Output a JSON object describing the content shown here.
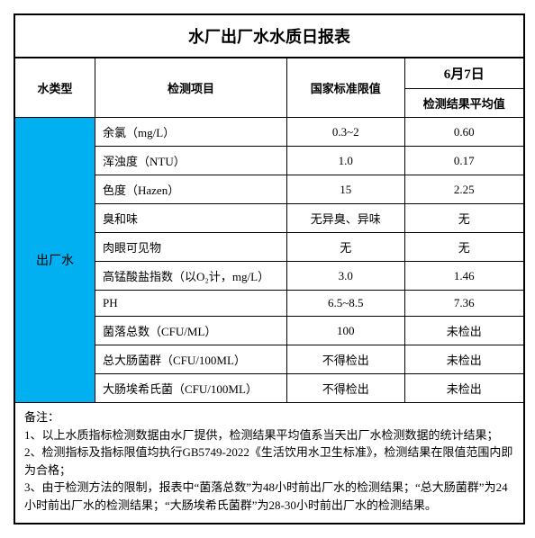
{
  "title": "水厂出厂水水质日报表",
  "headers": {
    "water_type": "水类型",
    "test_item": "检测项目",
    "national_limit": "国家标准限值",
    "date": "6月7日",
    "avg_result": "检测结果平均值"
  },
  "category": "出厂水",
  "rows": [
    {
      "item": "余氯（mg/L）",
      "limit": "0.3~2",
      "result": "0.60"
    },
    {
      "item": "浑浊度（NTU）",
      "limit": "1.0",
      "result": "0.17"
    },
    {
      "item": "色度（Hazen）",
      "limit": "15",
      "result": "2.25"
    },
    {
      "item": "臭和味",
      "limit": "无异臭、异味",
      "result": "无"
    },
    {
      "item": "肉眼可见物",
      "limit": "无",
      "result": "无"
    },
    {
      "item": "高锰酸盐指数（以O₂计，mg/L）",
      "limit": "3.0",
      "result": "1.46"
    },
    {
      "item": "PH",
      "limit": "6.5~8.5",
      "result": "7.36"
    },
    {
      "item": "菌落总数（CFU/ML）",
      "limit": "100",
      "result": "未检出"
    },
    {
      "item": "总大肠菌群（CFU/100ML）",
      "limit": "不得检出",
      "result": "未检出"
    },
    {
      "item": "大肠埃希氏菌（CFU/100ML）",
      "limit": "不得检出",
      "result": "未检出"
    }
  ],
  "notes": {
    "header": "备注：",
    "n1": "1、以上水质指标检测数据由水厂提供，检测结果平均值系当天出厂水检测数据的统计结果；",
    "n2": "2、检测指标及指标限值均执行GB5749-2022《生活饮用水卫生标准》，检测结果在限值范围内即为合格；",
    "n3": "3、由于检测方法的限制，报表中“菌落总数”为48小时前出厂水的检测结果；“总大肠菌群”为24小时前出厂水的检测结果；“大肠埃希氏菌群”为28-30小时前出厂水的检测结果。"
  },
  "colors": {
    "category_bg": "#00b0f0",
    "border": "#000000",
    "background": "#ffffff"
  }
}
